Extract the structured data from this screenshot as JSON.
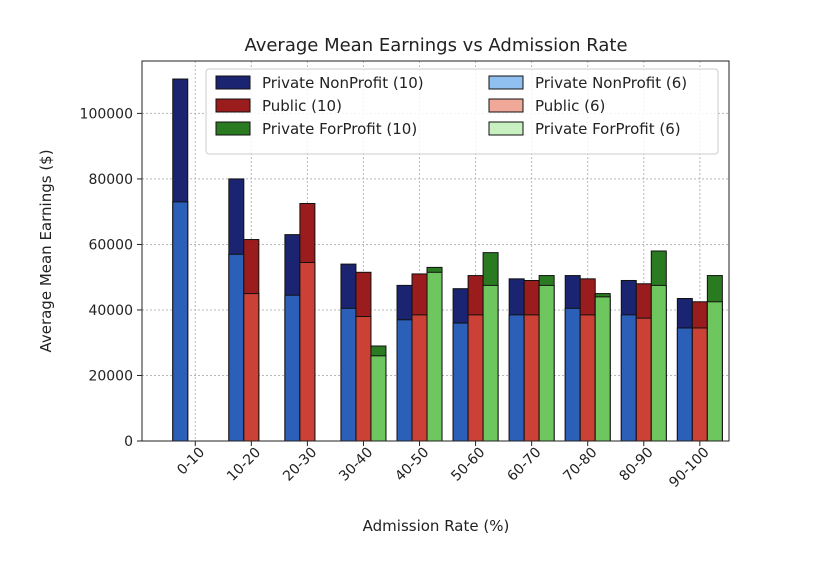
{
  "chart_data": {
    "type": "bar",
    "title": "Average Mean Earnings vs Admission Rate",
    "xlabel": "Admission Rate (%)",
    "ylabel": "Average Mean Earnings ($)",
    "ylim": [
      0,
      116000
    ],
    "yticks": [
      0,
      20000,
      40000,
      60000,
      80000,
      100000
    ],
    "grid": true,
    "legend_placement": "top",
    "categories": [
      "0-10",
      "10-20",
      "20-30",
      "30-40",
      "40-50",
      "50-60",
      "60-70",
      "70-80",
      "80-90",
      "90-100"
    ],
    "series": [
      {
        "name": "Private NonProfit (10)",
        "color": "#1a2470",
        "values": [
          110500,
          80000,
          63000,
          54000,
          47500,
          46500,
          49500,
          50500,
          49000,
          43500
        ]
      },
      {
        "name": "Public (10)",
        "color": "#9b1c1c",
        "values": [
          null,
          61500,
          72500,
          51500,
          51000,
          50500,
          49000,
          49500,
          48000,
          42500
        ]
      },
      {
        "name": "Private ForProfit (10)",
        "color": "#2a7a22",
        "values": [
          null,
          null,
          null,
          29000,
          53000,
          57500,
          50500,
          45000,
          58000,
          50500
        ]
      },
      {
        "name": "Private NonProfit (6)",
        "color": "#2c5fb8",
        "values": [
          73000,
          57000,
          44500,
          40500,
          37000,
          36000,
          38500,
          40500,
          38500,
          34500
        ]
      },
      {
        "name": "Public (6)",
        "color": "#cc4136",
        "values": [
          null,
          45000,
          54500,
          38000,
          38500,
          38500,
          38500,
          38500,
          37500,
          34500
        ]
      },
      {
        "name": "Private ForProfit (6)",
        "color": "#6dc65e",
        "values": [
          null,
          null,
          null,
          26000,
          51500,
          47500,
          47500,
          44000,
          47500,
          42500
        ]
      }
    ],
    "legend_colors": [
      "#1a2470",
      "#9b1c1c",
      "#2a7a22",
      "#90c0f0",
      "#f0a898",
      "#c8f0c0"
    ]
  }
}
